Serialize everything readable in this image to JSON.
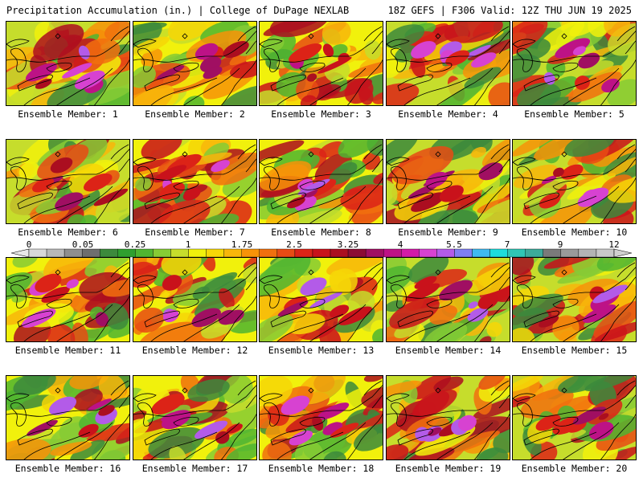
{
  "header": {
    "left": "Precipitation Accumulation (in.) | College of DuPage NEXLAB",
    "right": "18Z GEFS | F306 Valid: 12Z THU JUN 19 2025"
  },
  "colorbar": {
    "tick_labels": [
      "0",
      "0.05",
      "0.25",
      "1",
      "1.75",
      "2.5",
      "3.25",
      "4",
      "5.5",
      "7",
      "9",
      "12"
    ],
    "colors": [
      "#d8d8d8",
      "#b8b8b8",
      "#8f8f8f",
      "#6e6e6e",
      "#3c8a3c",
      "#2f9f2f",
      "#4fb531",
      "#86cb35",
      "#c6dd2c",
      "#f1f10c",
      "#f6d607",
      "#f8b60a",
      "#f79308",
      "#f1700e",
      "#e84b14",
      "#dc2317",
      "#c9121b",
      "#ab0e20",
      "#8c0b34",
      "#a00f62",
      "#bd1286",
      "#d31aa8",
      "#d742d1",
      "#b35be8",
      "#7f7ff3",
      "#3fbaf1",
      "#1edcdc",
      "#30c5b4",
      "#3cab9b",
      "#7a7a7a",
      "#9a9a9a",
      "#b4b4b4",
      "#c8c8c8"
    ]
  },
  "members": [
    {
      "label": "Ensemble Member: 1"
    },
    {
      "label": "Ensemble Member: 2"
    },
    {
      "label": "Ensemble Member: 3"
    },
    {
      "label": "Ensemble Member: 4"
    },
    {
      "label": "Ensemble Member: 5"
    },
    {
      "label": "Ensemble Member: 6"
    },
    {
      "label": "Ensemble Member: 7"
    },
    {
      "label": "Ensemble Member: 8"
    },
    {
      "label": "Ensemble Member: 9"
    },
    {
      "label": "Ensemble Member: 10"
    },
    {
      "label": "Ensemble Member: 11"
    },
    {
      "label": "Ensemble Member: 12"
    },
    {
      "label": "Ensemble Member: 13"
    },
    {
      "label": "Ensemble Member: 14"
    },
    {
      "label": "Ensemble Member: 15"
    },
    {
      "label": "Ensemble Member: 16"
    },
    {
      "label": "Ensemble Member: 17"
    },
    {
      "label": "Ensemble Member: 18"
    },
    {
      "label": "Ensemble Member: 19"
    },
    {
      "label": "Ensemble Member: 20"
    }
  ]
}
